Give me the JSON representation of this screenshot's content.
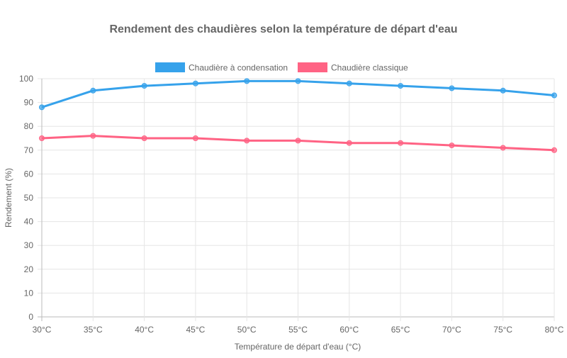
{
  "chart_data": {
    "type": "line",
    "title": "Rendement des chaudières selon la température de départ d'eau",
    "xlabel": "Température de départ d'eau (°C)",
    "ylabel": "Rendement (%)",
    "categories": [
      "30°C",
      "35°C",
      "40°C",
      "45°C",
      "50°C",
      "55°C",
      "60°C",
      "65°C",
      "70°C",
      "75°C",
      "80°C"
    ],
    "ylim": [
      0,
      100
    ],
    "yticks": [
      "0",
      "10",
      "20",
      "30",
      "40",
      "50",
      "60",
      "70",
      "80",
      "90",
      "100"
    ],
    "grid": true,
    "legend_position": "top",
    "series": [
      {
        "name": "Chaudière à condensation",
        "color": "#36a2eb",
        "values": [
          88,
          95,
          97,
          98,
          99,
          99,
          98,
          97,
          96,
          95,
          93
        ]
      },
      {
        "name": "Chaudière classique",
        "color": "#ff6384",
        "values": [
          75,
          76,
          75,
          75,
          74,
          74,
          73,
          73,
          72,
          71,
          70
        ]
      }
    ]
  }
}
